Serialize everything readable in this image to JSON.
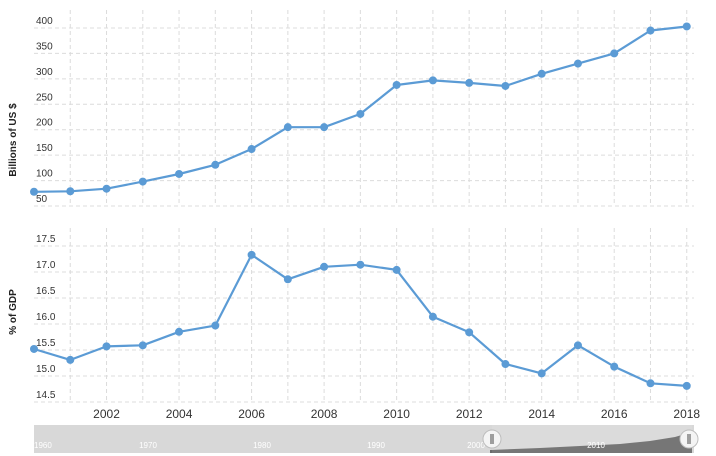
{
  "chart_data": [
    {
      "type": "line",
      "ylabel": "Billions of US $",
      "ylim": [
        50,
        400
      ],
      "yticks": [
        50,
        100,
        150,
        200,
        250,
        300,
        350,
        400
      ],
      "grid": true,
      "x": [
        2000,
        2001,
        2002,
        2003,
        2004,
        2005,
        2006,
        2007,
        2008,
        2009,
        2010,
        2011,
        2012,
        2013,
        2014,
        2015,
        2016,
        2017,
        2018
      ],
      "values": [
        78,
        79,
        84,
        98,
        113,
        131,
        162,
        205,
        205,
        231,
        288,
        297,
        292,
        286,
        310,
        330,
        350,
        395,
        403
      ]
    },
    {
      "type": "line",
      "ylabel": "% of GDP",
      "ylim": [
        14.5,
        17.5
      ],
      "yticks": [
        14.5,
        15.0,
        15.5,
        16.0,
        16.5,
        17.0,
        17.5
      ],
      "grid": true,
      "x": [
        2000,
        2001,
        2002,
        2003,
        2004,
        2005,
        2006,
        2007,
        2008,
        2009,
        2010,
        2011,
        2012,
        2013,
        2014,
        2015,
        2016,
        2017,
        2018
      ],
      "values": [
        15.52,
        15.31,
        15.57,
        15.59,
        15.85,
        15.97,
        17.33,
        16.86,
        17.1,
        17.14,
        17.04,
        16.14,
        15.84,
        15.23,
        15.05,
        15.59,
        15.18,
        14.86,
        14.81
      ]
    }
  ],
  "xaxis": {
    "ticks": [
      "2002",
      "2004",
      "2006",
      "2008",
      "2010",
      "2012",
      "2014",
      "2016",
      "2018"
    ]
  },
  "navigator": {
    "labels": [
      "1960",
      "1970",
      "1980",
      "1990",
      "2000",
      "2010"
    ]
  },
  "colors": {
    "line": "#5b9bd5",
    "navigator_bg": "#d8d8d8",
    "navigator_series": "#6b6b6b"
  }
}
